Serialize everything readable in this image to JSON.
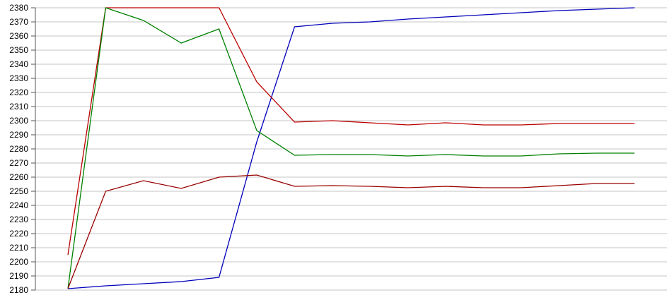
{
  "chart_data": {
    "type": "line",
    "title": "",
    "xlabel": "",
    "ylabel": "",
    "ylim": [
      2180,
      2380
    ],
    "ytick_step": 10,
    "ytick_labels": [
      "2380",
      "2370",
      "2360",
      "2350",
      "2340",
      "2330",
      "2320",
      "2310",
      "2300",
      "2290",
      "2280",
      "2270",
      "2260",
      "2250",
      "2240",
      "2230",
      "2220",
      "2210",
      "2200",
      "2190",
      "2180"
    ],
    "x_labels_visible": false,
    "num_points": 16,
    "grid": "horizontal",
    "legend_position": "none",
    "colors": {
      "background": "#ffffff",
      "gridline": "#c6c6c6",
      "axis": "#555555"
    },
    "series": [
      {
        "name": "blue",
        "color": "#0000bb",
        "values": [
          2181,
          2183,
          2184.5,
          2186,
          2189,
          2285,
          2366.5,
          2369,
          2370,
          2372,
          2373.5,
          2375,
          2376.5,
          2378,
          2379,
          2380
        ]
      },
      {
        "name": "red",
        "color": "#bb0000",
        "values": [
          2205,
          2380,
          2380,
          2380,
          2380,
          2327.5,
          2299,
          2300,
          2298.5,
          2297,
          2298.5,
          2297,
          2297,
          2298,
          2298,
          2298
        ]
      },
      {
        "name": "green",
        "color": "#008000",
        "values": [
          2181,
          2380,
          2371,
          2355,
          2365,
          2293,
          2275.5,
          2276,
          2276,
          2275,
          2276,
          2275,
          2275,
          2276.5,
          2277,
          2277
        ]
      },
      {
        "name": "dark-red",
        "color": "#990000",
        "values": [
          2181,
          2250,
          2257.5,
          2252,
          2260,
          2261.5,
          2253.5,
          2254,
          2253.5,
          2252.5,
          2253.5,
          2252.5,
          2252.5,
          2254,
          2255.5,
          2255.5
        ]
      }
    ]
  }
}
